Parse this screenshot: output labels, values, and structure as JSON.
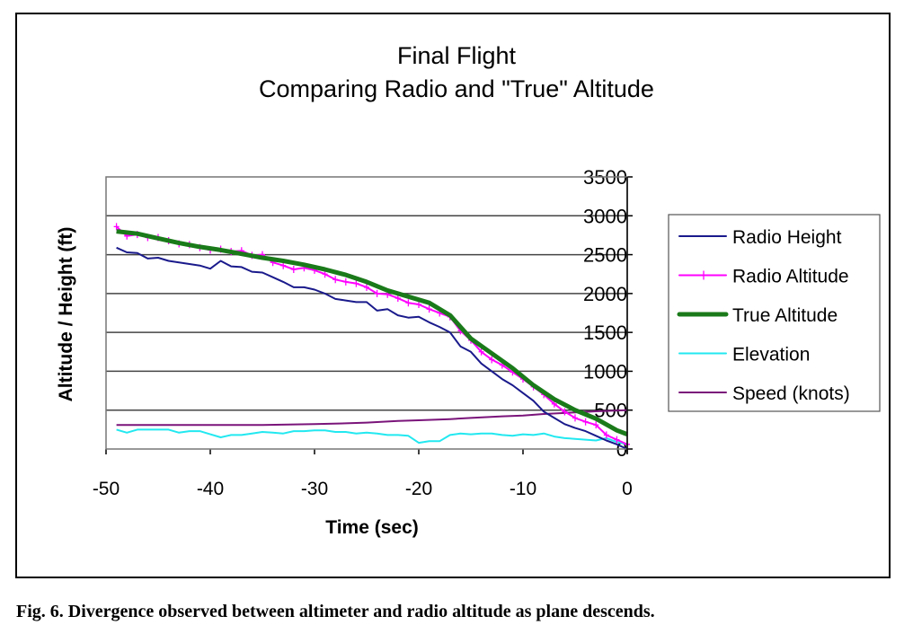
{
  "caption": "Fig. 6.  Divergence observed between altimeter and radio altitude as plane descends.",
  "chart_data": {
    "type": "line",
    "title": [
      "Final Flight",
      "Comparing Radio and \"True\" Altitude"
    ],
    "xlabel": "Time (sec)",
    "ylabel": "Altitude / Height (ft)",
    "xlim": [
      -50,
      0
    ],
    "ylim": [
      0,
      3500
    ],
    "xticks": [
      -50,
      -40,
      -30,
      -20,
      -10,
      0
    ],
    "yticks": [
      0,
      500,
      1000,
      1500,
      2000,
      2500,
      3000,
      3500
    ],
    "grid": "horizontal",
    "legend_position": "right",
    "series": [
      {
        "name": "Radio Height",
        "color": "#1a1a8c",
        "width": 2,
        "markers": false,
        "x": [
          -49,
          -48,
          -47,
          -46,
          -45,
          -44,
          -43,
          -42,
          -41,
          -40,
          -39,
          -38,
          -37,
          -36,
          -35,
          -34,
          -33,
          -32,
          -31,
          -30,
          -29,
          -28,
          -27,
          -26,
          -25,
          -24,
          -23,
          -22,
          -21,
          -20,
          -19,
          -18,
          -17,
          -16,
          -15,
          -14,
          -13,
          -12,
          -11,
          -10,
          -9,
          -8,
          -7,
          -6,
          -5,
          -4,
          -3,
          -2,
          -1,
          0
        ],
        "y": [
          2590,
          2530,
          2520,
          2450,
          2460,
          2420,
          2400,
          2380,
          2360,
          2320,
          2420,
          2350,
          2340,
          2280,
          2270,
          2210,
          2150,
          2080,
          2080,
          2050,
          2000,
          1930,
          1910,
          1890,
          1890,
          1780,
          1800,
          1720,
          1690,
          1700,
          1630,
          1570,
          1500,
          1320,
          1250,
          1100,
          1000,
          900,
          820,
          720,
          620,
          480,
          400,
          320,
          270,
          230,
          170,
          110,
          60,
          0
        ]
      },
      {
        "name": "Radio Altitude",
        "color": "#ff00ff",
        "width": 2,
        "markers": true,
        "x": [
          -49,
          -48,
          -47,
          -46,
          -45,
          -44,
          -43,
          -42,
          -41,
          -40,
          -39,
          -38,
          -37,
          -36,
          -35,
          -34,
          -33,
          -32,
          -31,
          -30,
          -29,
          -28,
          -27,
          -26,
          -25,
          -24,
          -23,
          -22,
          -21,
          -20,
          -19,
          -18,
          -17,
          -16,
          -15,
          -14,
          -13,
          -12,
          -11,
          -10,
          -9,
          -8,
          -7,
          -6,
          -5,
          -4,
          -3,
          -2,
          -1,
          0
        ],
        "y": [
          2860,
          2740,
          2760,
          2720,
          2720,
          2680,
          2640,
          2630,
          2590,
          2560,
          2570,
          2540,
          2550,
          2490,
          2500,
          2400,
          2360,
          2310,
          2330,
          2300,
          2250,
          2180,
          2150,
          2130,
          2080,
          2000,
          1990,
          1940,
          1880,
          1860,
          1800,
          1750,
          1700,
          1520,
          1400,
          1250,
          1150,
          1080,
          990,
          900,
          800,
          700,
          580,
          480,
          400,
          350,
          310,
          180,
          120,
          60
        ]
      },
      {
        "name": "True Altitude",
        "color": "#1a7a1a",
        "width": 5,
        "markers": false,
        "x": [
          -49,
          -47,
          -45,
          -43,
          -41,
          -39,
          -37,
          -35,
          -33,
          -31,
          -29,
          -27,
          -25,
          -23,
          -21,
          -19,
          -17,
          -15,
          -13,
          -11,
          -9,
          -7,
          -5,
          -3,
          -1,
          0
        ],
        "y": [
          2800,
          2770,
          2710,
          2650,
          2600,
          2560,
          2510,
          2460,
          2420,
          2370,
          2310,
          2240,
          2150,
          2040,
          1960,
          1880,
          1720,
          1420,
          1230,
          1040,
          820,
          640,
          500,
          390,
          240,
          190
        ]
      },
      {
        "name": "Elevation",
        "color": "#22e8f0",
        "width": 2,
        "markers": false,
        "x": [
          -49,
          -48,
          -47,
          -46,
          -45,
          -44,
          -43,
          -42,
          -41,
          -40,
          -39,
          -38,
          -37,
          -36,
          -35,
          -34,
          -33,
          -32,
          -31,
          -30,
          -29,
          -28,
          -27,
          -26,
          -25,
          -24,
          -23,
          -22,
          -21,
          -20,
          -19,
          -18,
          -17,
          -16,
          -15,
          -14,
          -13,
          -12,
          -11,
          -10,
          -9,
          -8,
          -7,
          -6,
          -5,
          -4,
          -3,
          -2,
          -1,
          0
        ],
        "y": [
          250,
          210,
          250,
          250,
          250,
          250,
          210,
          230,
          230,
          190,
          150,
          180,
          180,
          200,
          220,
          210,
          200,
          230,
          230,
          240,
          240,
          220,
          220,
          200,
          210,
          200,
          180,
          180,
          170,
          80,
          100,
          100,
          180,
          200,
          190,
          200,
          200,
          180,
          170,
          190,
          180,
          200,
          160,
          140,
          130,
          120,
          110,
          140,
          90,
          60
        ]
      },
      {
        "name": "Speed (knots)",
        "color": "#7a147a",
        "width": 2,
        "markers": false,
        "x": [
          -49,
          -45,
          -40,
          -35,
          -30,
          -27,
          -25,
          -22,
          -20,
          -17,
          -15,
          -12,
          -10,
          -8,
          -5,
          -3,
          0
        ],
        "y": [
          310,
          310,
          310,
          310,
          320,
          330,
          340,
          360,
          370,
          385,
          400,
          420,
          430,
          450,
          470,
          485,
          500
        ]
      }
    ]
  }
}
